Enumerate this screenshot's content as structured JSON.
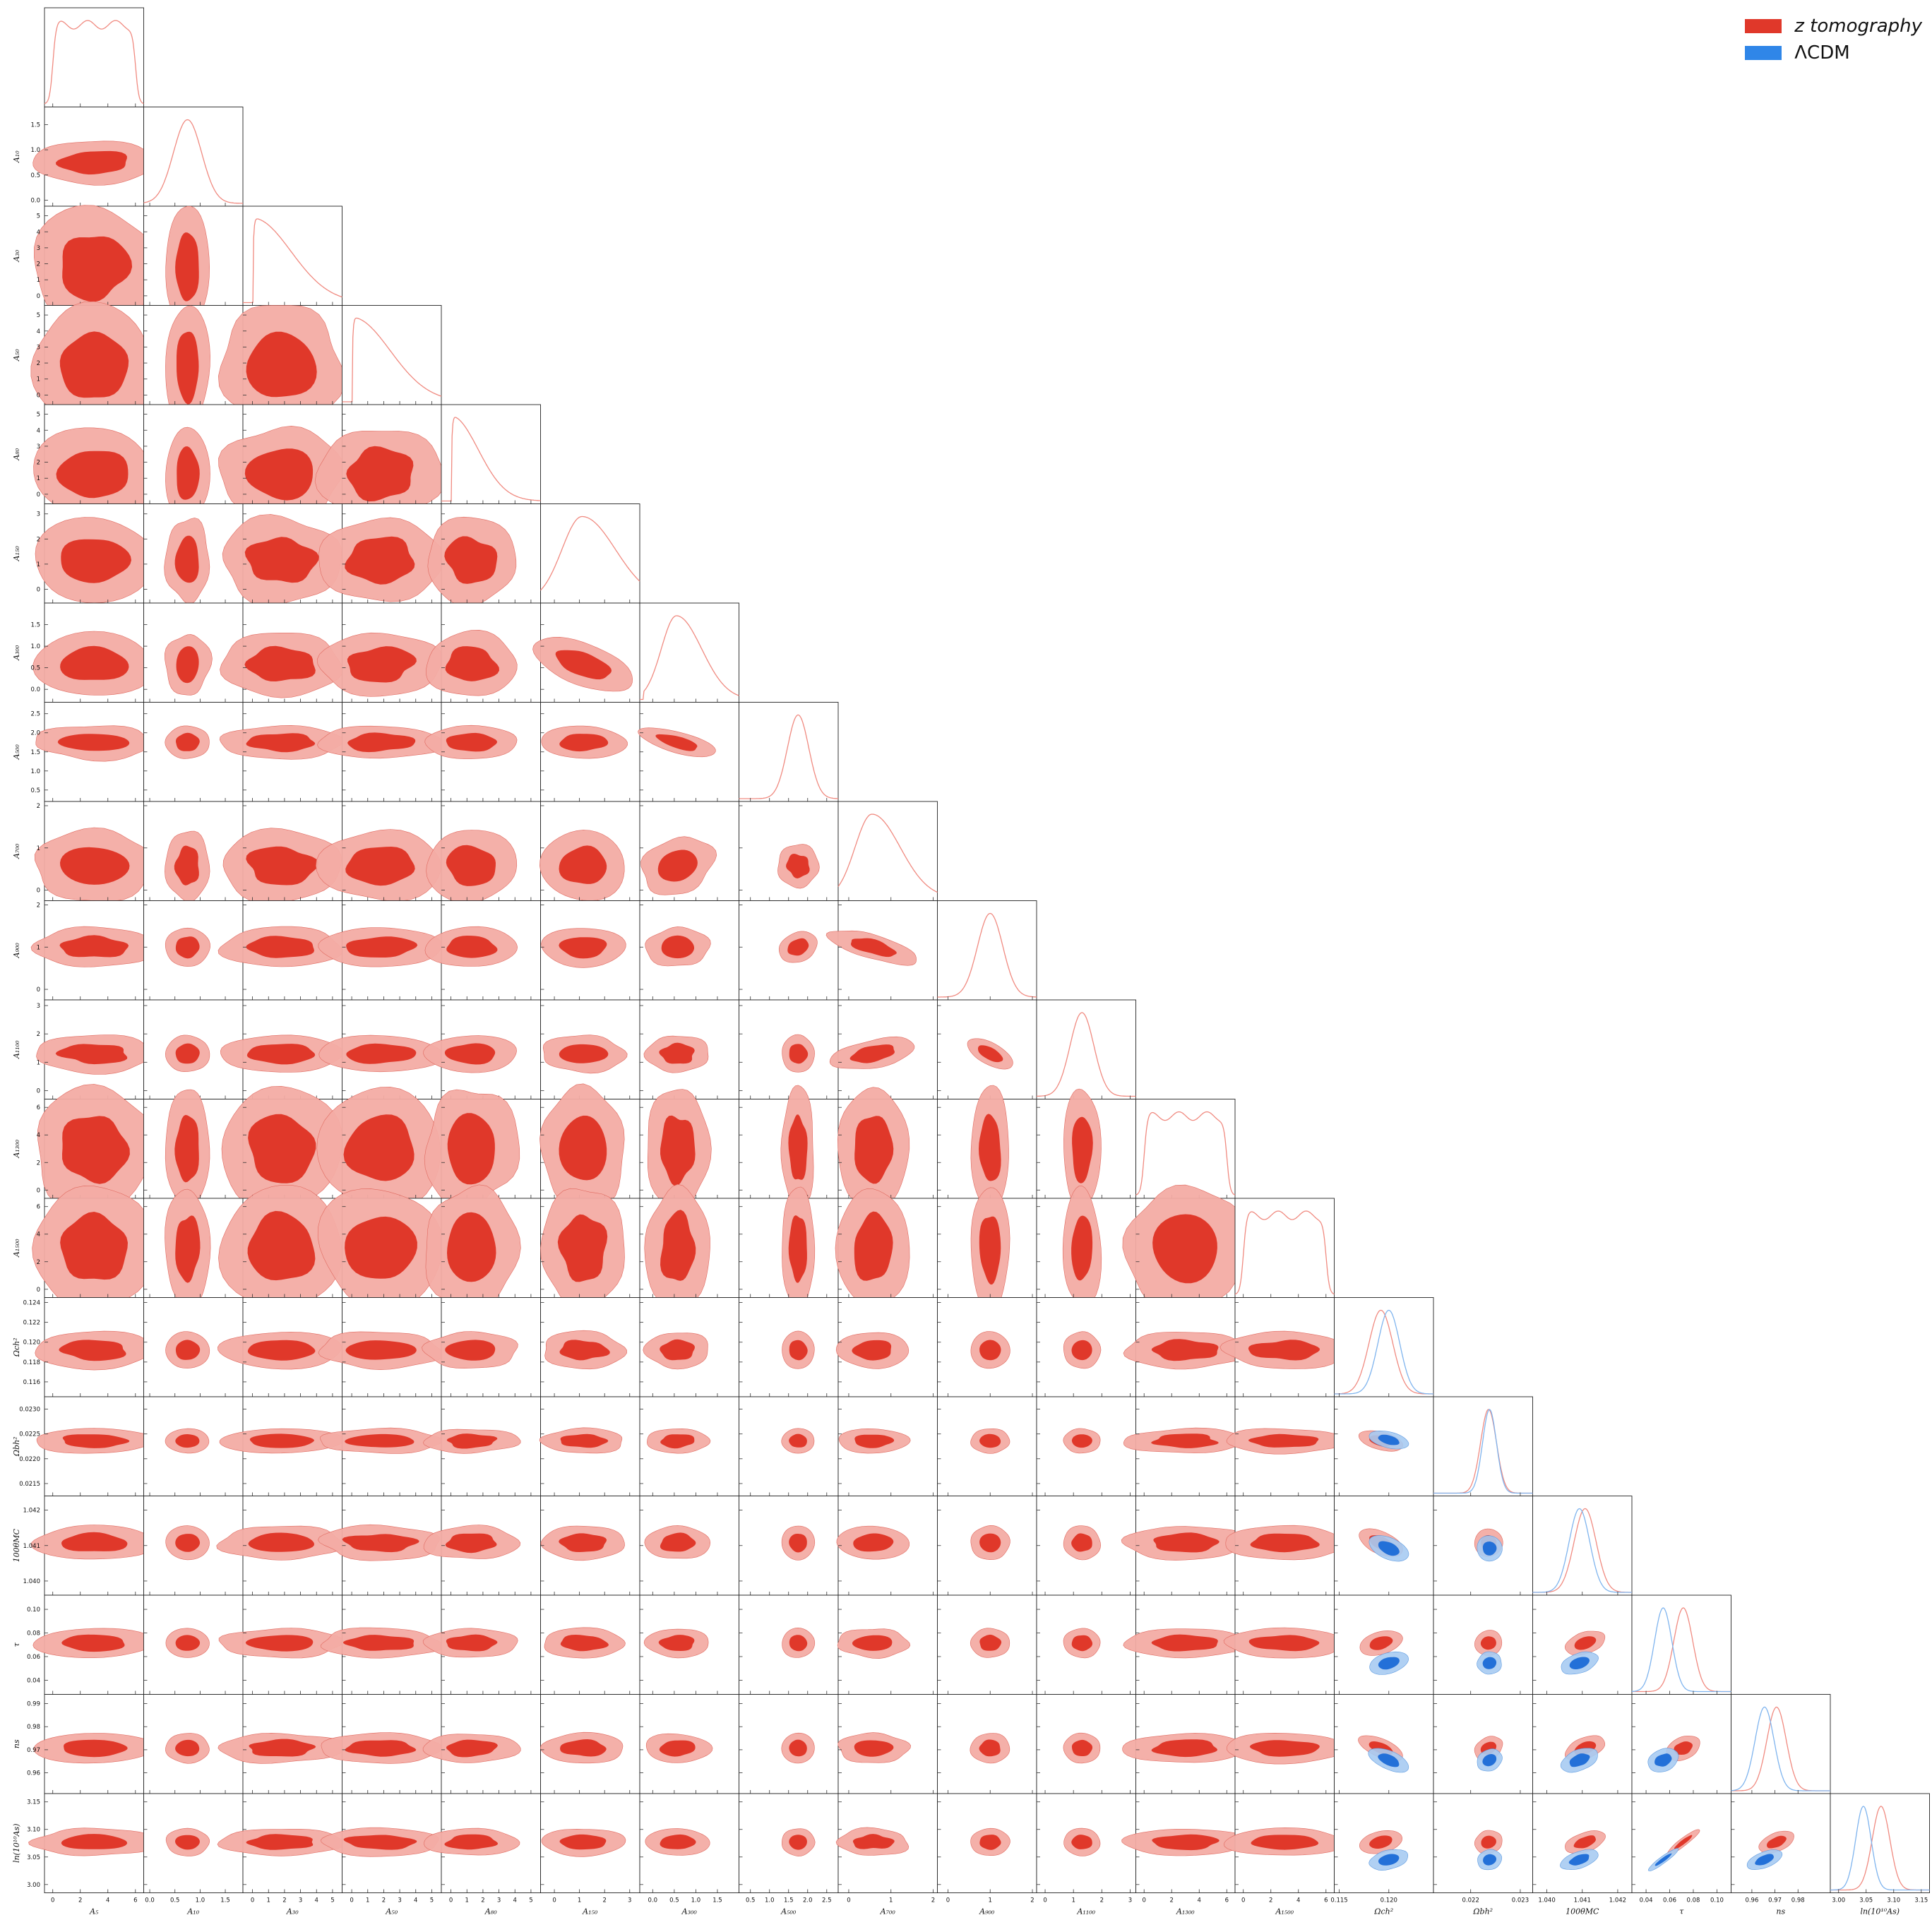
{
  "legend": {
    "items": [
      {
        "name": "z tomography",
        "color": "#e0382a"
      },
      {
        "name": "ΛCDM",
        "color": "#2f86e8"
      }
    ],
    "placement": "top-right"
  },
  "chart_data": {
    "type": "corner",
    "series": [
      {
        "name": "z tomography",
        "color": "#e0382a",
        "fill_inner": "#e0382a",
        "fill_outer": "#f3aca4"
      },
      {
        "name": "ΛCDM",
        "color": "#2f86e8",
        "fill_inner": "#2370d8",
        "fill_outer": "#a7cbf2"
      }
    ],
    "parameters": [
      {
        "label": "A_5",
        "display": "A₅",
        "ticks": [
          "0",
          "2",
          "4",
          "6"
        ],
        "range": [
          -0.6,
          6.6
        ],
        "type": "flat",
        "lo": 0.0,
        "hi": 6.0,
        "red": [
          3.2,
          1.7
        ],
        "blue": null
      },
      {
        "label": "A_10",
        "display": "A₁₀",
        "ticks": [
          "0.0",
          "0.5",
          "1.0",
          "1.5"
        ],
        "range": [
          -0.12,
          1.85
        ],
        "type": "gauss",
        "red": [
          0.75,
          0.28
        ],
        "blue": null
      },
      {
        "label": "A_30",
        "display": "A₃₀",
        "ticks": [
          "0",
          "1",
          "2",
          "3",
          "4",
          "5"
        ],
        "range": [
          -0.6,
          5.6
        ],
        "type": "halfnorm",
        "red": [
          0.0,
          2.4
        ],
        "blue": null
      },
      {
        "label": "A_50",
        "display": "A₅₀",
        "ticks": [
          "0",
          "1",
          "2",
          "3",
          "4",
          "5"
        ],
        "range": [
          -0.6,
          5.6
        ],
        "type": "halfnorm",
        "red": [
          0.0,
          2.4
        ],
        "blue": null
      },
      {
        "label": "A_80",
        "display": "A₈₀",
        "ticks": [
          "0",
          "1",
          "2",
          "3",
          "4",
          "5"
        ],
        "range": [
          -0.6,
          5.6
        ],
        "type": "halfnorm",
        "red": [
          0.0,
          1.7
        ],
        "blue": null
      },
      {
        "label": "A_150",
        "display": "A₁₅₀",
        "ticks": [
          "0",
          "1",
          "2",
          "3"
        ],
        "range": [
          -0.55,
          3.4
        ],
        "type": "skew",
        "red": [
          1.1,
          0.8
        ],
        "blue": null
      },
      {
        "label": "A_300",
        "display": "A₃₀₀",
        "ticks": [
          "0.0",
          "0.5",
          "1.0",
          "1.5"
        ],
        "range": [
          -0.3,
          2.0
        ],
        "type": "skew",
        "red": [
          0.55,
          0.35
        ],
        "blue": null
      },
      {
        "label": "A_500",
        "display": "A₅₀₀",
        "ticks": [
          "0.5",
          "1.0",
          "1.5",
          "2.0",
          "2.5"
        ],
        "range": [
          0.2,
          2.8
        ],
        "type": "gauss",
        "red": [
          1.75,
          0.28
        ],
        "blue": null
      },
      {
        "label": "A_700",
        "display": "A₇₀₀",
        "ticks": [
          "0",
          "1",
          "2"
        ],
        "range": [
          -0.25,
          2.1
        ],
        "type": "skew",
        "red": [
          0.55,
          0.4
        ],
        "blue": null
      },
      {
        "label": "A_900",
        "display": "A₉₀₀",
        "ticks": [
          "0",
          "1",
          "2"
        ],
        "range": [
          -0.25,
          2.1
        ],
        "type": "gauss",
        "red": [
          1.0,
          0.3
        ],
        "blue": null
      },
      {
        "label": "A_1100",
        "display": "A₁₁₀₀",
        "ticks": [
          "0",
          "1",
          "2",
          "3"
        ],
        "range": [
          -0.3,
          3.2
        ],
        "type": "gauss",
        "red": [
          1.3,
          0.42
        ],
        "blue": null
      },
      {
        "label": "A_1300",
        "display": "A₁₃₀₀",
        "ticks": [
          "0",
          "2",
          "4",
          "6"
        ],
        "range": [
          -0.6,
          6.6
        ],
        "type": "flat",
        "lo": 0.0,
        "hi": 6.0,
        "red": [
          3.0,
          1.7
        ],
        "blue": null
      },
      {
        "label": "A_1500",
        "display": "A₁₅₀₀",
        "ticks": [
          "0",
          "2",
          "4",
          "6"
        ],
        "range": [
          -0.6,
          6.6
        ],
        "type": "flat",
        "lo": 0.0,
        "hi": 6.0,
        "red": [
          3.0,
          1.7
        ],
        "blue": null
      },
      {
        "label": "Omega_c h^2",
        "display": "Ωch²",
        "ticks": [
          "0.115",
          "0.120"
        ],
        "ylabels": [
          "0.116",
          "0.118",
          "0.120",
          "0.122",
          "0.124"
        ],
        "range": [
          0.1145,
          0.1245
        ],
        "type": "gauss",
        "red": [
          0.1192,
          0.0012
        ],
        "blue": [
          0.12,
          0.0011
        ]
      },
      {
        "label": "Omega_b h^2",
        "display": "Ωbh²",
        "ticks": [
          "0.022",
          "0.023"
        ],
        "ylabels": [
          "0.0215",
          "0.0220",
          "0.0225",
          "0.0230"
        ],
        "range": [
          0.02125,
          0.02325
        ],
        "type": "gauss",
        "red": [
          0.02236,
          0.00016
        ],
        "blue": [
          0.02238,
          0.00014
        ]
      },
      {
        "label": "100 theta_MC",
        "display": "100θMC",
        "ticks": [
          "1.040",
          "1.041",
          "1.042"
        ],
        "range": [
          1.0396,
          1.0424
        ],
        "type": "gauss",
        "red": [
          1.04108,
          0.00031
        ],
        "blue": [
          1.04092,
          0.00029
        ]
      },
      {
        "label": "tau",
        "display": "τ",
        "ticks": [
          "0.04",
          "0.06",
          "0.08",
          "0.10"
        ],
        "ylabels": [
          "0.04",
          "0.06",
          "0.08",
          "0.10"
        ],
        "range": [
          0.028,
          0.112
        ],
        "type": "gauss",
        "red": [
          0.0715,
          0.008
        ],
        "blue": [
          0.0545,
          0.0073
        ]
      },
      {
        "label": "n_s",
        "display": "ns",
        "ticks": [
          "0.96",
          "0.97",
          "0.98"
        ],
        "ylabels": [
          "0.96",
          "0.97",
          "0.98",
          "0.99"
        ],
        "range": [
          0.951,
          0.994
        ],
        "type": "gauss",
        "red": [
          0.9707,
          0.0042
        ],
        "blue": [
          0.9655,
          0.0041
        ]
      },
      {
        "label": "ln(10^10 A_s)",
        "display": "ln(10¹⁰As)",
        "ticks": [
          "3.00",
          "3.05",
          "3.10",
          "3.15"
        ],
        "ylabels": [
          "3.00",
          "3.05",
          "3.10",
          "3.15"
        ],
        "range": [
          2.985,
          3.165
        ],
        "type": "gauss",
        "red": [
          3.077,
          0.016
        ],
        "blue": [
          3.045,
          0.014
        ]
      }
    ]
  }
}
